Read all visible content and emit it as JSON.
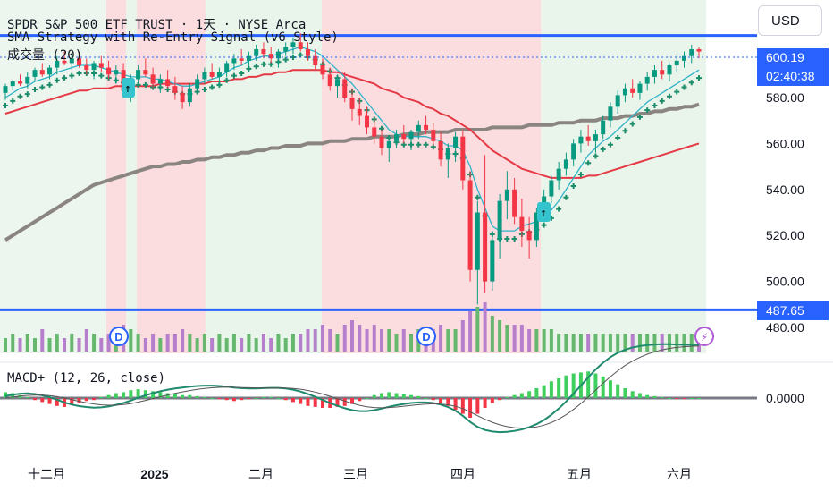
{
  "header": {
    "line1": "SPDR S&P 500 ETF TRUST · 1天 · NYSE Arca",
    "line2": "SMA Strategy with Re-Entry Signal (v6 Style)",
    "line3": "成交量 (20)",
    "macd": "MACD+ (12, 26, close)"
  },
  "currency": "USD",
  "tags": {
    "current_price": "600.19",
    "countdown": "02:40:38",
    "low_line": "487.65"
  },
  "markers": {
    "dividend": "D",
    "lightning": "⚡",
    "reentry": "↑"
  },
  "colors": {
    "up": "#089981",
    "down": "#f23645",
    "sma_fast": "#2fb3c9",
    "sma_mid": "#e53945",
    "sma_slow": "#8a8580",
    "trail": "#1b8c6a",
    "line": "#2962ff"
  },
  "chart_data": {
    "type": "candlestick",
    "y_ticks": [
      "580.00",
      "560.00",
      "540.00",
      "520.00",
      "500.00",
      "480.00"
    ],
    "macd_tick": "0.0000",
    "x_ticks": [
      "十二月",
      "2025",
      "二月",
      "三月",
      "四月",
      "五月",
      "六月"
    ],
    "horizontal_lines": [
      607.0,
      487.65
    ],
    "last_price": 600.19,
    "candles": [
      [
        582,
        586,
        579,
        585
      ],
      [
        585,
        588,
        583,
        587
      ],
      [
        587,
        590,
        585,
        586
      ],
      [
        586,
        591,
        584,
        589
      ],
      [
        589,
        593,
        587,
        592
      ],
      [
        592,
        595,
        589,
        590
      ],
      [
        590,
        594,
        588,
        593
      ],
      [
        593,
        598,
        590,
        596
      ],
      [
        596,
        600,
        594,
        595
      ],
      [
        595,
        599,
        592,
        597
      ],
      [
        597,
        600,
        593,
        594
      ],
      [
        594,
        597,
        590,
        592
      ],
      [
        592,
        596,
        588,
        595
      ],
      [
        595,
        598,
        591,
        593
      ],
      [
        593,
        596,
        588,
        590
      ],
      [
        590,
        594,
        586,
        592
      ],
      [
        592,
        595,
        580,
        583
      ],
      [
        583,
        590,
        578,
        588
      ],
      [
        588,
        594,
        586,
        592
      ],
      [
        592,
        597,
        589,
        590
      ],
      [
        590,
        593,
        584,
        586
      ],
      [
        586,
        590,
        582,
        588
      ],
      [
        588,
        592,
        584,
        585
      ],
      [
        585,
        589,
        579,
        582
      ],
      [
        582,
        585,
        575,
        578
      ],
      [
        578,
        586,
        576,
        584
      ],
      [
        584,
        590,
        582,
        588
      ],
      [
        588,
        593,
        586,
        591
      ],
      [
        591,
        595,
        588,
        589
      ],
      [
        589,
        593,
        585,
        591
      ],
      [
        591,
        596,
        589,
        595
      ],
      [
        595,
        599,
        592,
        597
      ],
      [
        597,
        601,
        594,
        596
      ],
      [
        596,
        600,
        593,
        598
      ],
      [
        598,
        603,
        596,
        601
      ],
      [
        601,
        604,
        597,
        599
      ],
      [
        599,
        602,
        595,
        597
      ],
      [
        597,
        601,
        593,
        600
      ],
      [
        600,
        604,
        598,
        602
      ],
      [
        602,
        606,
        599,
        604
      ],
      [
        604,
        608,
        600,
        601
      ],
      [
        601,
        604,
        596,
        598
      ],
      [
        598,
        601,
        592,
        594
      ],
      [
        594,
        597,
        588,
        590
      ],
      [
        590,
        593,
        583,
        585
      ],
      [
        585,
        590,
        580,
        588
      ],
      [
        588,
        591,
        578,
        580
      ],
      [
        580,
        584,
        570,
        575
      ],
      [
        575,
        580,
        568,
        572
      ],
      [
        572,
        576,
        564,
        567
      ],
      [
        567,
        571,
        560,
        563
      ],
      [
        563,
        566,
        555,
        558
      ],
      [
        558,
        563,
        552,
        561
      ],
      [
        561,
        566,
        558,
        564
      ],
      [
        564,
        568,
        560,
        562
      ],
      [
        562,
        566,
        557,
        565
      ],
      [
        565,
        570,
        562,
        568
      ],
      [
        568,
        572,
        564,
        566
      ],
      [
        566,
        569,
        559,
        561
      ],
      [
        561,
        565,
        550,
        553
      ],
      [
        553,
        560,
        545,
        558
      ],
      [
        558,
        565,
        552,
        563
      ],
      [
        563,
        566,
        540,
        544
      ],
      [
        544,
        548,
        500,
        505
      ],
      [
        505,
        535,
        490,
        530
      ],
      [
        530,
        555,
        495,
        500
      ],
      [
        500,
        522,
        496,
        518
      ],
      [
        518,
        538,
        510,
        535
      ],
      [
        535,
        548,
        527,
        540
      ],
      [
        540,
        545,
        525,
        528
      ],
      [
        528,
        536,
        515,
        522
      ],
      [
        522,
        528,
        510,
        518
      ],
      [
        518,
        532,
        515,
        530
      ],
      [
        530,
        540,
        527,
        537
      ],
      [
        537,
        546,
        534,
        544
      ],
      [
        544,
        552,
        540,
        549
      ],
      [
        549,
        556,
        546,
        553
      ],
      [
        553,
        562,
        550,
        560
      ],
      [
        560,
        566,
        556,
        563
      ],
      [
        563,
        568,
        559,
        561
      ],
      [
        561,
        566,
        556,
        564
      ],
      [
        564,
        572,
        562,
        570
      ],
      [
        570,
        578,
        567,
        576
      ],
      [
        576,
        583,
        573,
        581
      ],
      [
        581,
        586,
        578,
        584
      ],
      [
        584,
        588,
        580,
        582
      ],
      [
        582,
        587,
        579,
        586
      ],
      [
        586,
        591,
        583,
        589
      ],
      [
        589,
        594,
        586,
        592
      ],
      [
        592,
        596,
        588,
        590
      ],
      [
        590,
        595,
        587,
        594
      ],
      [
        594,
        598,
        591,
        596
      ],
      [
        596,
        600,
        593,
        598
      ],
      [
        598,
        603,
        595,
        601
      ],
      [
        601,
        602,
        597,
        600
      ]
    ],
    "sma_fast": [
      580,
      582,
      584,
      585,
      587,
      588,
      589,
      591,
      592,
      593,
      594,
      594,
      594,
      593,
      592,
      591,
      590,
      589,
      589,
      589,
      588,
      588,
      587,
      586,
      585,
      585,
      586,
      587,
      588,
      589,
      591,
      593,
      594,
      596,
      597,
      598,
      598,
      599,
      600,
      601,
      602,
      601,
      600,
      598,
      595,
      592,
      589,
      586,
      582,
      578,
      574,
      570,
      566,
      564,
      563,
      563,
      563,
      563,
      562,
      561,
      559,
      559,
      557,
      550,
      540,
      532,
      524,
      522,
      522,
      522,
      524,
      525,
      526,
      528,
      531,
      535,
      540,
      545,
      550,
      555,
      558,
      561,
      563,
      566,
      569,
      572,
      575,
      578,
      580,
      582,
      584,
      586,
      588,
      590,
      592
    ],
    "sma_mid": [
      573,
      574,
      575,
      576,
      577,
      578,
      579,
      580,
      581,
      582,
      583,
      583,
      584,
      584,
      584,
      585,
      585,
      585,
      585,
      585,
      585,
      586,
      586,
      586,
      586,
      586,
      586,
      586,
      587,
      587,
      587,
      588,
      588,
      589,
      589,
      590,
      590,
      591,
      591,
      592,
      592,
      592,
      592,
      592,
      591,
      591,
      590,
      589,
      588,
      587,
      586,
      584,
      583,
      582,
      580,
      579,
      578,
      576,
      575,
      573,
      572,
      570,
      568,
      566,
      563,
      560,
      557,
      555,
      553,
      551,
      549,
      548,
      547,
      546,
      545,
      545,
      545,
      545,
      545,
      546,
      546,
      547,
      548,
      549,
      550,
      551,
      552,
      553,
      554,
      555,
      556,
      557,
      558,
      559,
      560
    ],
    "sma_slow": [
      518,
      520,
      522,
      524,
      526,
      528,
      530,
      532,
      534,
      536,
      538,
      540,
      542,
      543,
      544,
      545,
      546,
      547,
      548,
      549,
      550,
      550,
      551,
      551,
      552,
      552,
      553,
      553,
      554,
      554,
      555,
      555,
      556,
      556,
      557,
      557,
      558,
      558,
      559,
      559,
      559,
      560,
      560,
      560,
      561,
      561,
      561,
      562,
      562,
      562,
      563,
      563,
      563,
      563,
      564,
      564,
      564,
      565,
      565,
      565,
      565,
      566,
      566,
      566,
      566,
      566,
      567,
      567,
      567,
      567,
      567,
      568,
      568,
      568,
      568,
      569,
      569,
      569,
      570,
      570,
      570,
      571,
      571,
      571,
      572,
      572,
      573,
      573,
      574,
      574,
      575,
      575,
      576,
      576,
      577
    ],
    "volume": [
      3,
      4,
      3,
      4,
      3,
      5,
      3,
      4,
      3,
      4,
      3,
      5,
      4,
      3,
      4,
      3,
      6,
      5,
      4,
      3,
      4,
      3,
      4,
      4,
      5,
      4,
      3,
      4,
      3,
      4,
      3,
      4,
      3,
      4,
      3,
      4,
      3,
      4,
      3,
      4,
      4,
      5,
      5,
      6,
      5,
      4,
      6,
      7,
      6,
      5,
      6,
      5,
      5,
      4,
      5,
      4,
      5,
      4,
      5,
      6,
      5,
      5,
      7,
      9,
      10,
      11,
      8,
      7,
      6,
      6,
      6,
      5,
      5,
      5,
      5,
      4,
      4,
      4,
      4,
      4,
      4,
      4,
      4,
      4,
      4,
      4,
      4,
      4,
      4,
      4,
      4,
      4,
      4,
      4,
      4
    ],
    "macd_hist": [
      0.6,
      0.5,
      0.3,
      0.1,
      -0.2,
      -0.4,
      -0.6,
      -0.8,
      -0.9,
      -0.7,
      -0.5,
      -0.3,
      -0.2,
      0.1,
      0.3,
      0.5,
      0.6,
      0.8,
      0.9,
      0.8,
      0.7,
      0.6,
      0.5,
      0.4,
      0.3,
      0.3,
      0.2,
      0.1,
      0,
      -0.1,
      -0.2,
      -0.3,
      -0.2,
      -0.1,
      0,
      0.1,
      0.1,
      0,
      -0.2,
      -0.4,
      -0.6,
      -0.8,
      -0.9,
      -1.0,
      -1.0,
      -0.9,
      -0.8,
      -0.6,
      -0.3,
      0,
      0.3,
      0.5,
      0.6,
      0.5,
      0.4,
      0.3,
      0.2,
      0,
      -0.2,
      -0.5,
      -0.8,
      -1.2,
      -1.6,
      -2.0,
      -1.6,
      -1.0,
      -0.5,
      -0.2,
      0.1,
      0.3,
      0.5,
      0.7,
      1.0,
      1.3,
      1.7,
      2.0,
      2.3,
      2.5,
      2.6,
      2.7,
      2.5,
      2.2,
      1.8,
      1.4,
      1.0,
      0.7,
      0.5,
      0.3,
      0.2,
      0.1,
      0,
      -0.1,
      -0.1,
      0,
      0
    ]
  }
}
